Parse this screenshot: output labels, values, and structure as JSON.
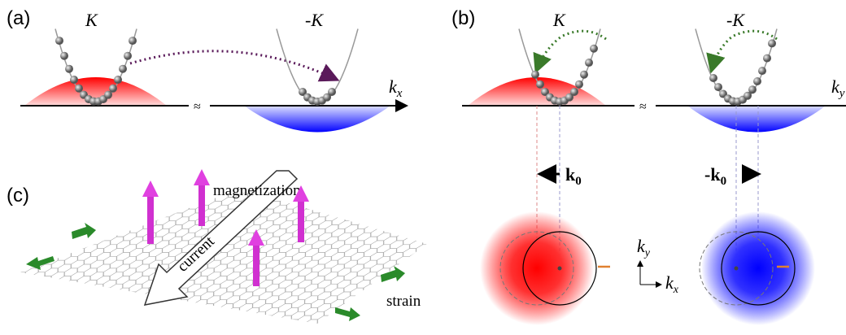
{
  "panel_a": {
    "label": "(a)",
    "valley_left": "K",
    "valley_right": "-K",
    "axis": {
      "base": "k",
      "sub": "x"
    }
  },
  "panel_b": {
    "label": "(b)",
    "valley_left": "K",
    "valley_right": "-K",
    "axis": {
      "base": "k",
      "sub": "y"
    },
    "shift_left": {
      "base": "k",
      "sub": "0"
    },
    "shift_right": {
      "base": "-k",
      "sub": "0"
    },
    "ky_axis": {
      "base": "k",
      "sub": "y"
    },
    "kx_axis": {
      "base": "k",
      "sub": "x"
    }
  },
  "panel_c": {
    "label": "(c)",
    "magnetization": "magnetization",
    "current": "current",
    "strain": "strain"
  }
}
